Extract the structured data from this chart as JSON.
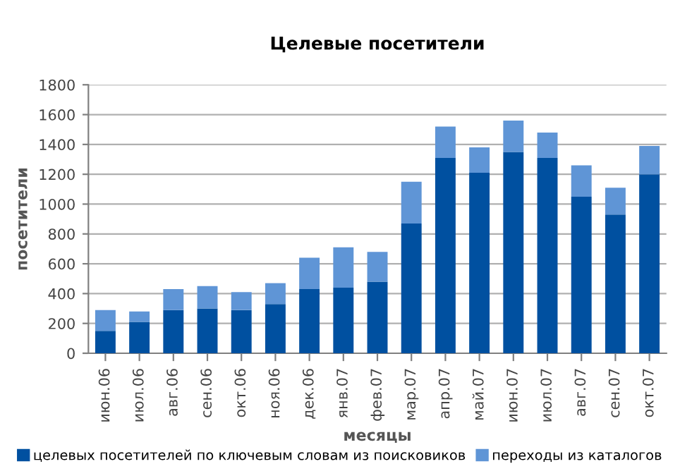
{
  "chart_data": {
    "type": "bar",
    "title": "Целевые посетители",
    "xlabel": "месяцы",
    "ylabel": "посетители",
    "categories": [
      "июн.06",
      "июл.06",
      "авг.06",
      "сен.06",
      "окт.06",
      "ноя.06",
      "дек.06",
      "янв.07",
      "фев.07",
      "мар.07",
      "апр.07",
      "май.07",
      "июн.07",
      "июл.07",
      "авг.07",
      "сен.07",
      "окт.07"
    ],
    "series": [
      {
        "name": "целевых посетителей по ключевым словам из поисковиков",
        "color": "#0050a0",
        "values": [
          150,
          210,
          290,
          300,
          290,
          330,
          430,
          440,
          480,
          870,
          1310,
          1210,
          1350,
          1310,
          1050,
          930,
          1200
        ]
      },
      {
        "name": "переходы из каталогов",
        "color": "#5f95d6",
        "values": [
          140,
          70,
          140,
          150,
          120,
          140,
          210,
          270,
          200,
          280,
          210,
          170,
          210,
          170,
          210,
          180,
          190
        ]
      }
    ],
    "stacked": true,
    "ylim": [
      0,
      1800
    ],
    "yticks": [
      0,
      200,
      400,
      600,
      800,
      1000,
      1200,
      1400,
      1600,
      1800
    ],
    "grid": "y",
    "legend": "bottom"
  }
}
